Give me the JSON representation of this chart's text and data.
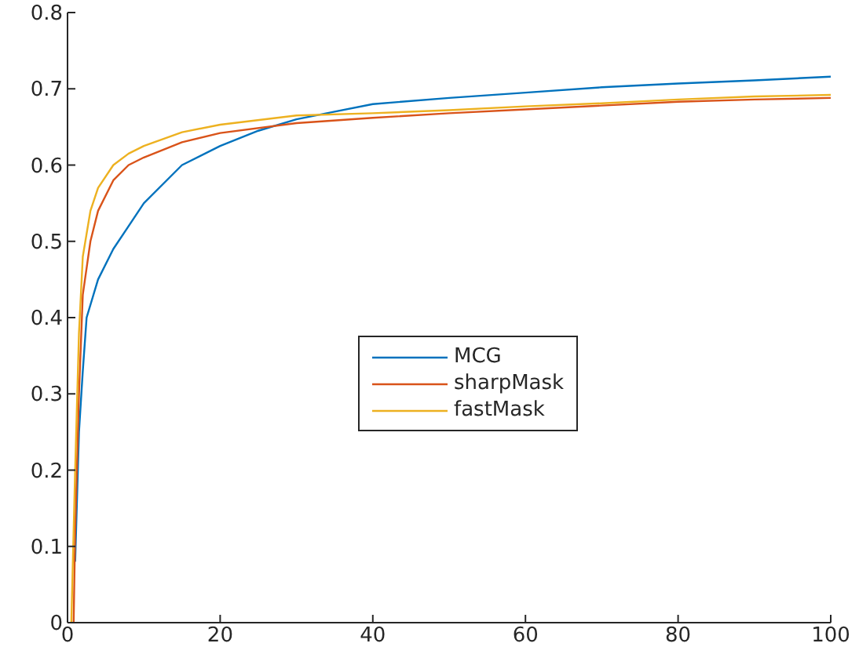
{
  "chart_data": {
    "type": "line",
    "xlim": [
      0,
      100
    ],
    "xticks": [
      0,
      20,
      40,
      60,
      80,
      100
    ],
    "ylim": [
      0,
      0.8
    ],
    "yticks": [
      0,
      0.1,
      0.2,
      0.3,
      0.4,
      0.5,
      0.6,
      0.7,
      0.8
    ],
    "grid": false,
    "legend": "center",
    "marker": "none",
    "line_style": "solid",
    "series": [
      {
        "name": "MCG",
        "color": "#0072bd",
        "x": [
          1,
          1.5,
          2,
          2.5,
          4,
          6,
          8,
          10,
          15,
          20,
          25,
          30,
          35,
          40,
          50,
          60,
          70,
          80,
          90,
          100
        ],
        "values": [
          0.08,
          0.25,
          0.33,
          0.4,
          0.45,
          0.49,
          0.52,
          0.55,
          0.6,
          0.625,
          0.645,
          0.66,
          0.67,
          0.68,
          0.688,
          0.695,
          0.702,
          0.707,
          0.711,
          0.716
        ]
      },
      {
        "name": "sharpMask",
        "color": "#d95319",
        "x": [
          0.8,
          1,
          1.5,
          2,
          3,
          4,
          6,
          8,
          10,
          15,
          20,
          30,
          40,
          50,
          60,
          70,
          80,
          90,
          100
        ],
        "values": [
          0,
          0.12,
          0.3,
          0.43,
          0.5,
          0.54,
          0.58,
          0.6,
          0.61,
          0.63,
          0.642,
          0.655,
          0.662,
          0.668,
          0.673,
          0.678,
          0.683,
          0.686,
          0.688
        ]
      },
      {
        "name": "fastMask",
        "color": "#edb120",
        "x": [
          0.5,
          1,
          1.5,
          2,
          3,
          4,
          6,
          8,
          10,
          15,
          20,
          30,
          40,
          50,
          60,
          70,
          80,
          90,
          100
        ],
        "values": [
          0,
          0.2,
          0.38,
          0.48,
          0.54,
          0.57,
          0.6,
          0.615,
          0.625,
          0.643,
          0.653,
          0.665,
          0.668,
          0.672,
          0.677,
          0.681,
          0.686,
          0.69,
          0.692
        ]
      }
    ]
  }
}
